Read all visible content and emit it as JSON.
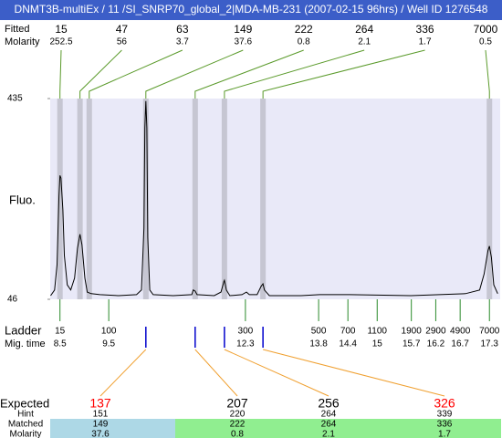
{
  "header": {
    "title": "DNMT3B-multiEx / 11 /SI_SNRP70_global_2|MDA-MB-231 (2007-02-15 96hrs) / Well ID 1276548"
  },
  "top_table": {
    "fitted_label": "Fitted",
    "molarity_label": "Molarity"
  },
  "chart_data": {
    "type": "line",
    "y_label": "Fluo.",
    "ylim": [
      46,
      435
    ],
    "yticks": [
      46,
      435
    ],
    "xlim": [
      8.3,
      17.52
    ],
    "trace": {
      "color": "#000000",
      "x": [
        8.31,
        8.39,
        8.44,
        8.48,
        8.5,
        8.52,
        8.56,
        8.59,
        8.65,
        8.72,
        8.8,
        8.86,
        8.91,
        8.95,
        9.01,
        9.06,
        9.14,
        9.32,
        9.7,
        10.07,
        10.17,
        10.22,
        10.24,
        10.26,
        10.28,
        10.3,
        10.34,
        10.41,
        10.82,
        11.2,
        11.23,
        11.27,
        11.31,
        11.66,
        11.8,
        11.86,
        11.87,
        11.91,
        11.98,
        12.23,
        12.32,
        12.38,
        12.54,
        12.62,
        12.66,
        12.69,
        12.79,
        13.44,
        13.82,
        14.44,
        15.69,
        16.81,
        17.1,
        17.19,
        17.27,
        17.3,
        17.34,
        17.39,
        17.47
      ],
      "y": [
        53,
        64,
        113,
        246,
        286,
        281,
        219,
        131,
        74,
        64,
        87,
        145,
        172,
        152,
        87,
        60,
        57,
        55,
        53,
        55,
        64,
        184,
        378,
        430,
        378,
        166,
        64,
        55,
        53,
        55,
        64,
        62,
        55,
        53,
        60,
        81,
        83,
        64,
        53,
        55,
        60,
        55,
        55,
        71,
        76,
        64,
        53,
        53,
        55,
        55,
        53,
        57,
        64,
        95,
        140,
        149,
        127,
        74,
        57
      ]
    },
    "peaks": [
      {
        "size": 15,
        "molarity": 252.5,
        "mig_time": 8.5
      },
      {
        "size": 47,
        "molarity": 56,
        "mig_time": 8.91
      },
      {
        "size": 63,
        "molarity": 3.7,
        "mig_time": 9.1
      },
      {
        "size": 149,
        "molarity": 37.6,
        "mig_time": 10.26
      },
      {
        "size": 222,
        "molarity": 0.8,
        "mig_time": 11.27
      },
      {
        "size": 264,
        "molarity": 2.1,
        "mig_time": 11.87
      },
      {
        "size": 336,
        "molarity": 1.7,
        "mig_time": 12.66
      },
      {
        "size": 7000,
        "molarity": 0.5,
        "mig_time": 17.3
      }
    ],
    "ladder": {
      "label": "Ladder",
      "mig_label": "Mig. time",
      "sizes": [
        15,
        100,
        300,
        500,
        700,
        1100,
        1900,
        2900,
        4900,
        7000
      ],
      "mig_times": [
        8.5,
        9.5,
        12.3,
        13.8,
        14.4,
        15,
        15.7,
        16.2,
        16.7,
        17.3
      ]
    }
  },
  "expected_table": {
    "labels": {
      "expected": "Expected",
      "hint": "Hint",
      "matched": "Matched",
      "molarity": "Molarity"
    },
    "columns": [
      {
        "expected": 137,
        "hint": 151,
        "matched": 149,
        "molarity": 37.6,
        "color": "#ff0000",
        "cell_color": "#add8e6"
      },
      {
        "expected": 207,
        "hint": 220,
        "matched": 222,
        "molarity": 0.8,
        "color": "#000000",
        "cell_color": "#90ee90"
      },
      {
        "expected": 256,
        "hint": 264,
        "matched": 264,
        "molarity": 2.1,
        "color": "#000000",
        "cell_color": "#90ee90"
      },
      {
        "expected": 326,
        "hint": 339,
        "matched": 336,
        "molarity": 1.7,
        "color": "#ff0000",
        "cell_color": "#90ee90"
      }
    ]
  }
}
